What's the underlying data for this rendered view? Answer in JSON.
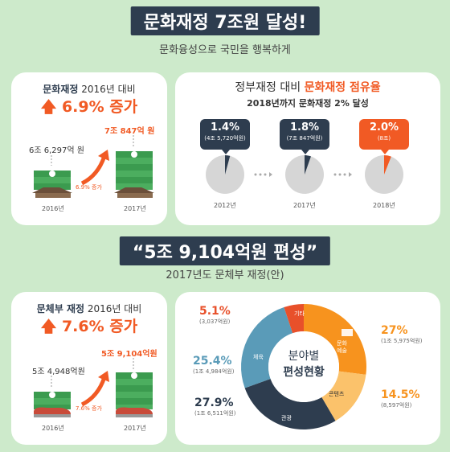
{
  "header": {
    "title": "문화재정 7조원 달성!",
    "subtitle": "문화융성으로 국민을 행복하게"
  },
  "card1": {
    "heading_bold": "문화재정",
    "heading_rest": "2016년 대비",
    "increase": "6.9% 증가",
    "value_2016": "6조 6,297억 원",
    "value_2017": "7조 847억 원",
    "arrow_label": "6.9% 증가",
    "year_left": "2016년",
    "year_right": "2017년"
  },
  "card2": {
    "title_plain": "정부재정 대비",
    "title_highlight": "문화재정 점유율",
    "subtitle": "2018년까지 문화재정 2% 달성",
    "pies": [
      {
        "value": "1.4%",
        "sub": "(4조 5,720억원)",
        "year": "2012년",
        "share": 1.4
      },
      {
        "value": "1.8%",
        "sub": "(7조 847억원)",
        "year": "2017년",
        "share": 1.8
      },
      {
        "value": "2.0%",
        "sub": "(8조)",
        "year": "2018년",
        "share": 2.0
      }
    ]
  },
  "header2": {
    "title": "“5조 9,104억원 편성”",
    "subtitle": "2017년도 문체부 재정(안)"
  },
  "card3": {
    "heading_bold": "문체부 재정",
    "heading_rest": "2016년 대비",
    "increase": "7.6% 증가",
    "value_2016": "5조 4,948억원",
    "value_2017": "5조 9,104억원",
    "arrow_label": "7.6% 증가",
    "year_left": "2016년",
    "year_right": "2017년"
  },
  "card4": {
    "center_line1": "분야별",
    "center_line2": "편성현황",
    "segments": [
      {
        "name": "문화예술",
        "pct": "27%",
        "sub": "(1조 5,975억원)",
        "value": 27,
        "color": "#f7931e"
      },
      {
        "name": "콘텐츠",
        "pct": "14.5%",
        "sub": "(8,597억원)",
        "value": 14.5,
        "color": "#fbc26b"
      },
      {
        "name": "관광",
        "pct": "27.9%",
        "sub": "(1조 6,511억원)",
        "value": 27.9,
        "color": "#2e3d4f"
      },
      {
        "name": "체육",
        "pct": "25.4%",
        "sub": "(1조 4,984억원)",
        "value": 25.4,
        "color": "#5a9bb8"
      },
      {
        "name": "기타",
        "pct": "5.1%",
        "sub": "(3,037억원)",
        "value": 5.1,
        "color": "#e8502a"
      }
    ]
  },
  "colors": {
    "background": "#cdeacb",
    "accent": "#f15a24",
    "navy": "#2e3d4f"
  }
}
